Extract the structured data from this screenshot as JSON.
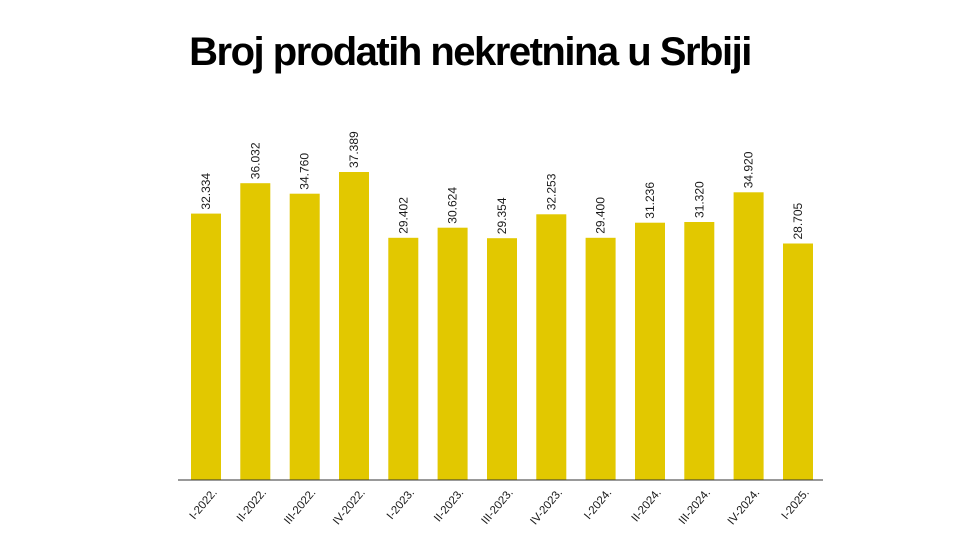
{
  "chart_data": {
    "type": "bar",
    "title": "Broj prodatih nekretnina u Srbiji",
    "xlabel": "",
    "ylabel": "",
    "ylim": [
      0,
      40000
    ],
    "grid": false,
    "legend": "none",
    "categories": [
      "I-2022.",
      "II-2022.",
      "III-2022.",
      "IV-2022.",
      "I-2023.",
      "II-2023.",
      "III-2023.",
      "IV-2023.",
      "I-2024.",
      "II-2024.",
      "III-2024.",
      "IV-2024.",
      "I-2025."
    ],
    "values": [
      32334,
      36032,
      34760,
      37389,
      29402,
      30624,
      29354,
      32253,
      29400,
      31236,
      31320,
      34920,
      28705
    ],
    "value_labels": [
      "32.334",
      "36.032",
      "34.760",
      "37.389",
      "29.402",
      "30.624",
      "29.354",
      "32.253",
      "29.400",
      "31.236",
      "31.320",
      "34.920",
      "28.705"
    ],
    "bar_color": "#e2c800",
    "axis_color": "#333333"
  }
}
